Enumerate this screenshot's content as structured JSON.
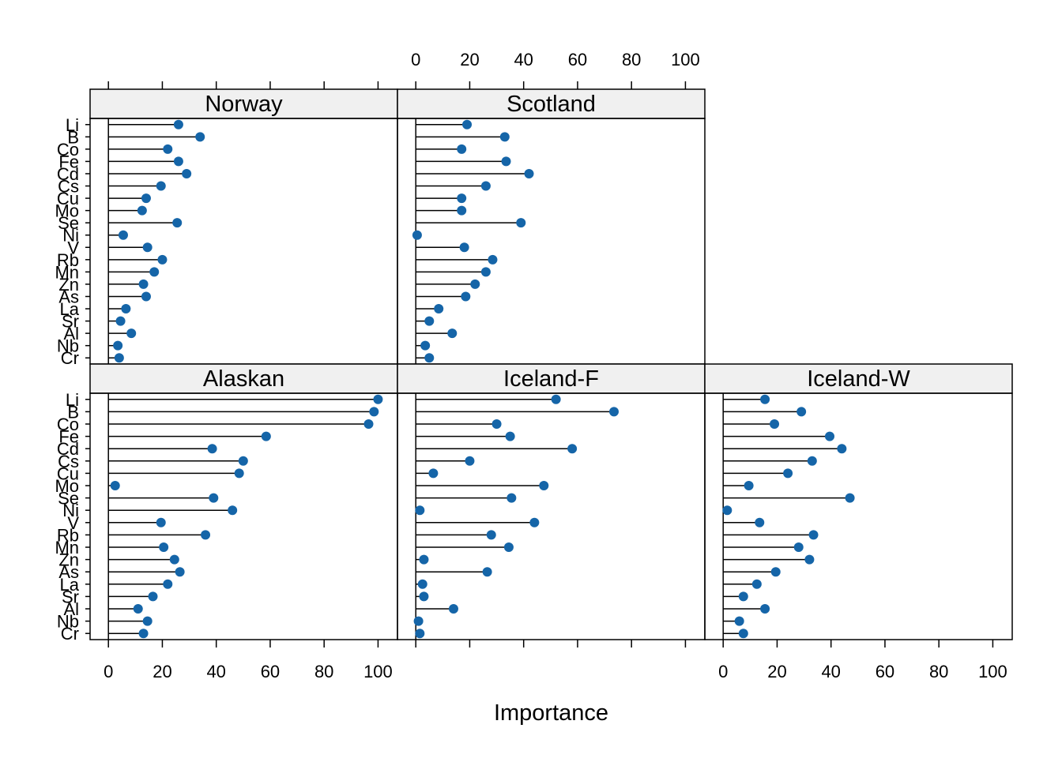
{
  "chart_data": {
    "type": "dotplot",
    "xlabel": "Importance",
    "xlim": [
      -6.8,
      107.2
    ],
    "xticks": [
      "0",
      "20",
      "40",
      "60",
      "80",
      "100"
    ],
    "point_color": "#1565a8",
    "strip_color": "#f0f0f0",
    "categories": [
      "Li",
      "B",
      "Co",
      "Fe",
      "Cd",
      "Cs",
      "Cu",
      "Mo",
      "Se",
      "Ni",
      "V",
      "Rb",
      "Mn",
      "Zn",
      "As",
      "La",
      "Sr",
      "Al",
      "Nb",
      "Cr"
    ],
    "panels": [
      {
        "name": "Norway",
        "values": [
          26,
          34,
          22,
          26,
          29,
          19.5,
          14,
          12.5,
          25.5,
          5.5,
          14.5,
          20,
          17,
          13,
          14,
          6.5,
          4.5,
          8.5,
          3.5,
          4
        ]
      },
      {
        "name": "Scotland",
        "values": [
          19,
          33,
          17,
          33.5,
          42,
          26,
          17,
          17,
          39,
          0.5,
          18,
          28.5,
          26,
          22,
          18.5,
          8.5,
          5,
          13.5,
          3.5,
          5
        ]
      },
      {
        "name": "Alaskan",
        "values": [
          100,
          98.5,
          96.5,
          58.5,
          38.5,
          50,
          48.5,
          2.5,
          39,
          46,
          19.5,
          36,
          20.5,
          24.5,
          26.5,
          22,
          16.5,
          11,
          14.5,
          13
        ]
      },
      {
        "name": "Iceland-F",
        "values": [
          52,
          73.5,
          30,
          35,
          58,
          20,
          6.5,
          47.5,
          35.5,
          1.5,
          44,
          28,
          34.5,
          3,
          26.5,
          2.5,
          3,
          14,
          1,
          1.5
        ]
      },
      {
        "name": "Iceland-W",
        "values": [
          15.5,
          29,
          19,
          39.5,
          44,
          33,
          24,
          9.5,
          47,
          1.5,
          13.5,
          33.5,
          28,
          32,
          19.5,
          12.5,
          7.5,
          15.5,
          6,
          7.5
        ]
      }
    ]
  }
}
